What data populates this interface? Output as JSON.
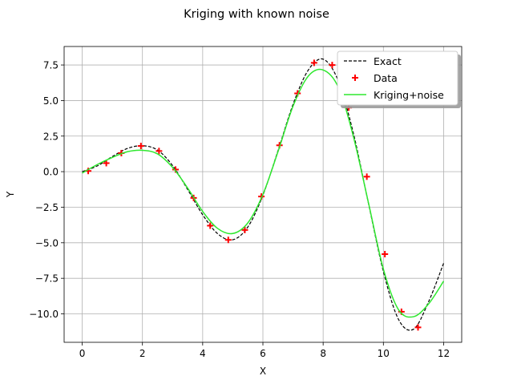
{
  "chart_data": {
    "type": "line",
    "title": "Kriging with known noise",
    "xlabel": "X",
    "ylabel": "Y",
    "xlim": [
      -0.6,
      12.6
    ],
    "ylim": [
      -12.0,
      8.8
    ],
    "xticks": [
      0,
      2,
      4,
      6,
      8,
      10,
      12
    ],
    "xtick_labels": [
      "0",
      "2",
      "4",
      "6",
      "8",
      "10",
      "12"
    ],
    "yticks": [
      -10.0,
      -7.5,
      -5.0,
      -2.5,
      0.0,
      2.5,
      5.0,
      7.5
    ],
    "ytick_labels": [
      "−10.0",
      "−7.5",
      "−5.0",
      "−2.5",
      "0.0",
      "2.5",
      "5.0",
      "7.5"
    ],
    "grid": true,
    "legend_position": "top-right",
    "series": [
      {
        "name": "Exact",
        "kind": "line",
        "style": "dashed",
        "color": "#000000",
        "x": [
          0,
          0.5,
          1,
          1.5,
          2,
          2.5,
          3,
          3.5,
          4,
          4.5,
          5,
          5.5,
          6,
          6.5,
          7,
          7.5,
          8,
          8.5,
          9,
          9.5,
          10,
          10.5,
          11,
          11.5,
          12
        ],
        "y": [
          0.0,
          0.4,
          1.06,
          1.63,
          1.82,
          1.52,
          0.43,
          -1.25,
          -3.03,
          -4.37,
          -4.79,
          -3.89,
          -1.66,
          1.47,
          4.73,
          7.12,
          7.91,
          6.39,
          2.73,
          -2.19,
          -7.02,
          -10.38,
          -11.08,
          -9.15,
          -6.44
        ]
      },
      {
        "name": "Data",
        "kind": "scatter",
        "marker": "+",
        "color": "#ff0000",
        "x": [
          0.2,
          0.8,
          1.3,
          1.95,
          2.55,
          3.1,
          3.7,
          4.25,
          4.85,
          5.4,
          5.95,
          6.55,
          7.15,
          7.7,
          8.3,
          8.85,
          9.45,
          10.05,
          10.6,
          11.15
        ],
        "y": [
          0.05,
          0.6,
          1.3,
          1.8,
          1.45,
          0.15,
          -1.85,
          -3.8,
          -4.8,
          -4.1,
          -1.75,
          1.85,
          5.5,
          7.65,
          7.5,
          4.5,
          -0.35,
          -5.8,
          -9.85,
          -10.95
        ]
      },
      {
        "name": "Kriging+noise",
        "kind": "line",
        "style": "solid",
        "color": "#2ee82e",
        "x": [
          0,
          0.5,
          1,
          1.5,
          2,
          2.5,
          3,
          3.5,
          4,
          4.5,
          5,
          5.5,
          6,
          6.5,
          7,
          7.5,
          8,
          8.5,
          9,
          9.5,
          10,
          10.5,
          11,
          11.5,
          12
        ],
        "y": [
          -0.1,
          0.5,
          1.0,
          1.4,
          1.5,
          1.25,
          0.3,
          -1.15,
          -2.8,
          -4.0,
          -4.35,
          -3.6,
          -1.6,
          1.4,
          4.6,
          6.7,
          7.15,
          5.95,
          2.5,
          -2.15,
          -6.85,
          -9.7,
          -10.2,
          -9.3,
          -7.7
        ]
      }
    ]
  }
}
